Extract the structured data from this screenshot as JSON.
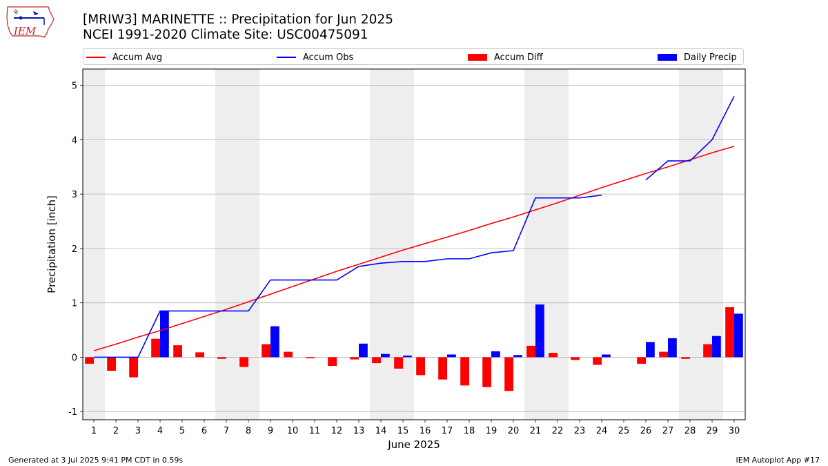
{
  "header": {
    "title_line1": "[MRIW3] MARINETTE :: Precipitation for Jun 2025",
    "title_line2": "NCEI 1991-2020 Climate Site: USC00475091"
  },
  "logo": {
    "text": "IEM",
    "icon": "iem-iowa-map-logo-icon"
  },
  "legend": {
    "items": [
      {
        "label": "Accum Avg",
        "color": "#ff0000",
        "kind": "line"
      },
      {
        "label": "Accum Obs",
        "color": "#0000ff",
        "kind": "line"
      },
      {
        "label": "Accum Diff",
        "color": "#ff0000",
        "kind": "bar"
      },
      {
        "label": "Daily Precip",
        "color": "#0000ff",
        "kind": "bar"
      }
    ]
  },
  "footer": {
    "left": "Generated at 3 Jul 2025 9:41 PM CDT in 0.59s",
    "right": "IEM Autoplot App #17"
  },
  "chart_data": {
    "type": "bar",
    "xlabel": "June 2025",
    "ylabel": "Precipitation [inch]",
    "ylim": [
      -1.15,
      5.3
    ],
    "yticks": [
      -1,
      0,
      1,
      2,
      3,
      4,
      5
    ],
    "grid": "horizontal",
    "legend_position": "top",
    "weekend_shading_days": [
      1,
      7,
      8,
      14,
      15,
      21,
      22,
      28,
      29
    ],
    "x": [
      1,
      2,
      3,
      4,
      5,
      6,
      7,
      8,
      9,
      10,
      11,
      12,
      13,
      14,
      15,
      16,
      17,
      18,
      19,
      20,
      21,
      22,
      23,
      24,
      25,
      26,
      27,
      28,
      29,
      30
    ],
    "series": [
      {
        "name": "Accum Avg",
        "kind": "line",
        "color": "#ff0000",
        "values": [
          0.12,
          0.24,
          0.37,
          0.49,
          0.62,
          0.75,
          0.88,
          1.02,
          1.16,
          1.3,
          1.44,
          1.58,
          1.71,
          1.84,
          1.97,
          2.09,
          2.21,
          2.33,
          2.46,
          2.58,
          2.71,
          2.84,
          2.98,
          3.12,
          3.25,
          3.38,
          3.5,
          3.63,
          3.76,
          3.88
        ]
      },
      {
        "name": "Accum Obs",
        "kind": "line",
        "color": "#0000ff",
        "values": [
          0.0,
          0.0,
          0.0,
          0.85,
          0.85,
          0.85,
          0.85,
          0.85,
          1.42,
          1.42,
          1.42,
          1.42,
          1.67,
          1.73,
          1.76,
          1.76,
          1.81,
          1.81,
          1.92,
          1.96,
          2.93,
          2.93,
          2.93,
          2.98,
          null,
          3.26,
          3.61,
          3.61,
          4.0,
          4.8
        ]
      },
      {
        "name": "Accum Diff",
        "kind": "bar",
        "color": "#ff0000",
        "values": [
          -0.12,
          -0.25,
          -0.37,
          0.34,
          0.22,
          0.09,
          -0.03,
          -0.18,
          0.24,
          0.1,
          -0.02,
          -0.16,
          -0.04,
          -0.11,
          -0.21,
          -0.33,
          -0.41,
          -0.52,
          -0.55,
          -0.62,
          0.21,
          0.08,
          -0.05,
          -0.14,
          null,
          -0.12,
          0.1,
          -0.03,
          0.24,
          0.92
        ]
      },
      {
        "name": "Daily Precip",
        "kind": "bar",
        "color": "#0000ff",
        "values": [
          0.0,
          0.0,
          0.0,
          0.85,
          0.0,
          0.0,
          0.0,
          0.0,
          0.57,
          0.0,
          0.0,
          0.0,
          0.25,
          0.06,
          0.03,
          0.0,
          0.05,
          0.0,
          0.11,
          0.04,
          0.97,
          0.0,
          0.0,
          0.05,
          null,
          0.28,
          0.35,
          0.0,
          0.39,
          0.8
        ]
      }
    ]
  }
}
